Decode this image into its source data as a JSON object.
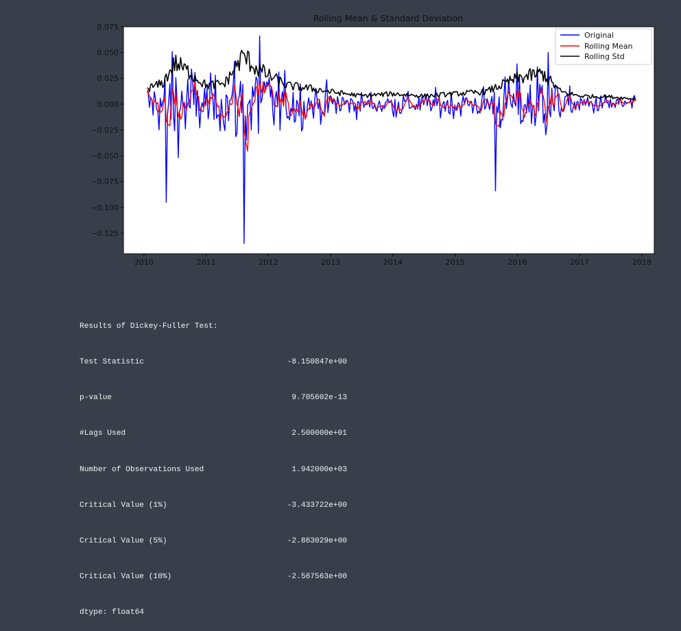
{
  "colors": {
    "background": "#383f4b",
    "plot_area": "#ffffff",
    "original": "#0000ff",
    "rolling_mean": "#ff0000",
    "rolling_std": "#000000"
  },
  "chart_data": {
    "type": "line",
    "title": "Rolling Mean & Standard Deviation",
    "xlabel": "",
    "ylabel": "",
    "xlim": [
      2009.67,
      2018.2
    ],
    "ylim": [
      -0.145,
      0.075
    ],
    "x_ticks": [
      2010,
      2011,
      2012,
      2013,
      2014,
      2015,
      2016,
      2017,
      2018
    ],
    "x_tick_labels": [
      "2010",
      "2011",
      "2012",
      "2013",
      "2014",
      "2015",
      "2016",
      "2017",
      "2018"
    ],
    "y_ticks": [
      0.075,
      0.05,
      0.025,
      0.0,
      -0.025,
      -0.05,
      -0.075,
      -0.1,
      -0.125
    ],
    "y_tick_labels": [
      "0.075",
      "0.050",
      "0.025",
      "0.000",
      "−0.025",
      "−0.050",
      "−0.075",
      "−0.100",
      "−0.125"
    ],
    "grid": false,
    "legend_position": "top-right",
    "series": [
      {
        "name": "Original",
        "color": "#0000ff",
        "x_range": [
          2010.05,
          2017.9
        ],
        "summary": "weekly returns oscillating around 0, roughly -0.05 to +0.045, with spikes to 0.066 (late 2011) and -0.135 (mid 2011)",
        "extremes": [
          [
            2010.35,
            -0.095
          ],
          [
            2010.45,
            0.051
          ],
          [
            2011.6,
            -0.135
          ],
          [
            2011.85,
            0.066
          ],
          [
            2015.65,
            -0.084
          ],
          [
            2016.5,
            0.05
          ]
        ]
      },
      {
        "name": "Rolling Mean",
        "color": "#ff0000",
        "x_range": [
          2010.05,
          2017.9
        ],
        "summary": "smoothed returns mostly between -0.04 and +0.02"
      },
      {
        "name": "Rolling Std",
        "color": "#000000",
        "x_range": [
          2010.05,
          2017.9
        ],
        "summary": "volatility ~0.005-0.02, peaks ~0.05 in late 2011",
        "points": [
          [
            2010.05,
            0.015
          ],
          [
            2010.3,
            0.02
          ],
          [
            2010.5,
            0.04
          ],
          [
            2010.75,
            0.03
          ],
          [
            2011.0,
            0.018
          ],
          [
            2011.3,
            0.02
          ],
          [
            2011.6,
            0.047
          ],
          [
            2011.8,
            0.035
          ],
          [
            2012.0,
            0.028
          ],
          [
            2012.3,
            0.018
          ],
          [
            2012.7,
            0.015
          ],
          [
            2013.0,
            0.012
          ],
          [
            2013.5,
            0.008
          ],
          [
            2014.0,
            0.01
          ],
          [
            2014.5,
            0.008
          ],
          [
            2015.0,
            0.01
          ],
          [
            2015.5,
            0.012
          ],
          [
            2015.8,
            0.02
          ],
          [
            2016.0,
            0.025
          ],
          [
            2016.4,
            0.03
          ],
          [
            2016.7,
            0.012
          ],
          [
            2017.0,
            0.008
          ],
          [
            2017.5,
            0.007
          ],
          [
            2017.9,
            0.005
          ]
        ]
      }
    ]
  },
  "df_output": {
    "header": "Results of Dickey-Fuller Test:",
    "rows": [
      {
        "label": "Test Statistic",
        "value": "-8.150847e+00"
      },
      {
        "label": "p-value",
        "value": "9.705602e-13"
      },
      {
        "label": "#Lags Used",
        "value": "2.500000e+01"
      },
      {
        "label": "Number of Observations Used",
        "value": "1.942000e+03"
      },
      {
        "label": "Critical Value (1%)",
        "value": "-3.433722e+00"
      },
      {
        "label": "Critical Value (5%)",
        "value": "-2.863029e+00"
      },
      {
        "label": "Critical Value (10%)",
        "value": "-2.567563e+00"
      }
    ],
    "dtype": "dtype: float64"
  }
}
